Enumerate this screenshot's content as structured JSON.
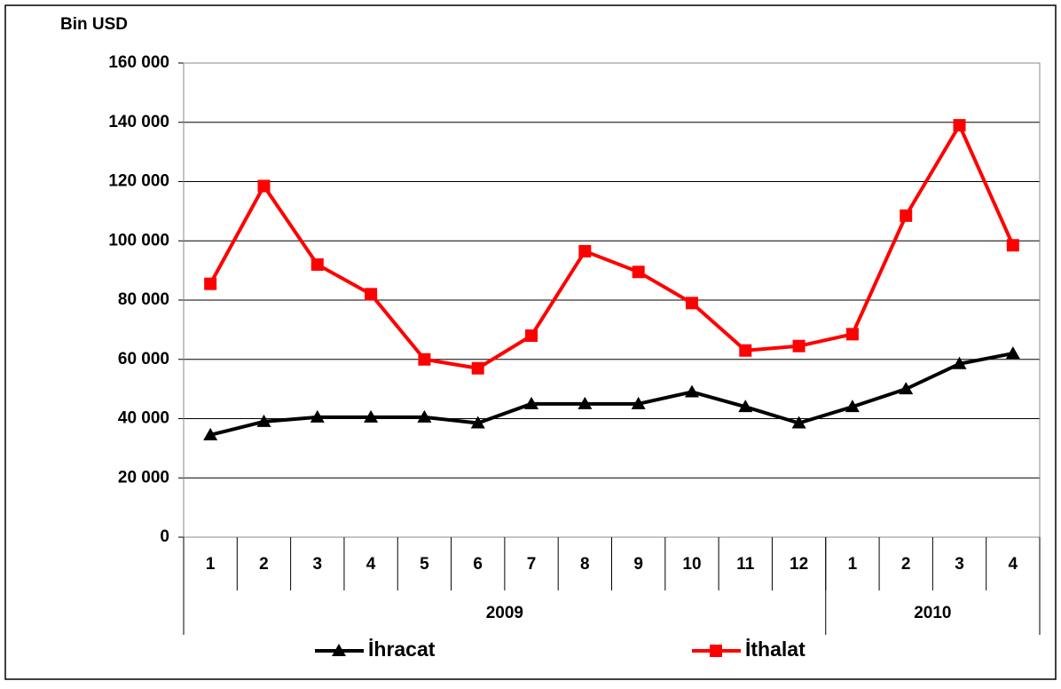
{
  "chart_data": {
    "type": "line",
    "y_axis_label": "Bin USD",
    "categories": [
      "1",
      "2",
      "3",
      "4",
      "5",
      "6",
      "7",
      "8",
      "9",
      "10",
      "11",
      "12",
      "1",
      "2",
      "3",
      "4"
    ],
    "x_groups": [
      {
        "label": "2009",
        "count": 12
      },
      {
        "label": "2010",
        "count": 4
      }
    ],
    "series": [
      {
        "name": "İhracat",
        "color": "#000000",
        "marker": "triangle",
        "values": [
          34500,
          39000,
          40500,
          40500,
          40500,
          38500,
          45000,
          45000,
          45000,
          49000,
          44000,
          38500,
          44000,
          50000,
          58500,
          62000
        ]
      },
      {
        "name": "İthalat",
        "color": "#ff0000",
        "marker": "square",
        "values": [
          85500,
          118500,
          92000,
          82000,
          60000,
          57000,
          68000,
          96500,
          89500,
          79000,
          63000,
          64500,
          68500,
          108500,
          139000,
          98500
        ]
      }
    ],
    "ylim": [
      0,
      160000
    ],
    "yticks": [
      0,
      {
        "value": 20000,
        "label": "20 000"
      },
      {
        "value": 40000,
        "label": "40 000"
      },
      {
        "value": 60000,
        "label": "60 000"
      },
      {
        "value": 80000,
        "label": "80 000"
      },
      {
        "value": 100000,
        "label": "100 000"
      },
      {
        "value": 120000,
        "label": "120 000"
      },
      {
        "value": 140000,
        "label": "140 000"
      },
      {
        "value": 160000,
        "label": "160 000"
      }
    ],
    "grid": true,
    "legend": "bottom"
  }
}
